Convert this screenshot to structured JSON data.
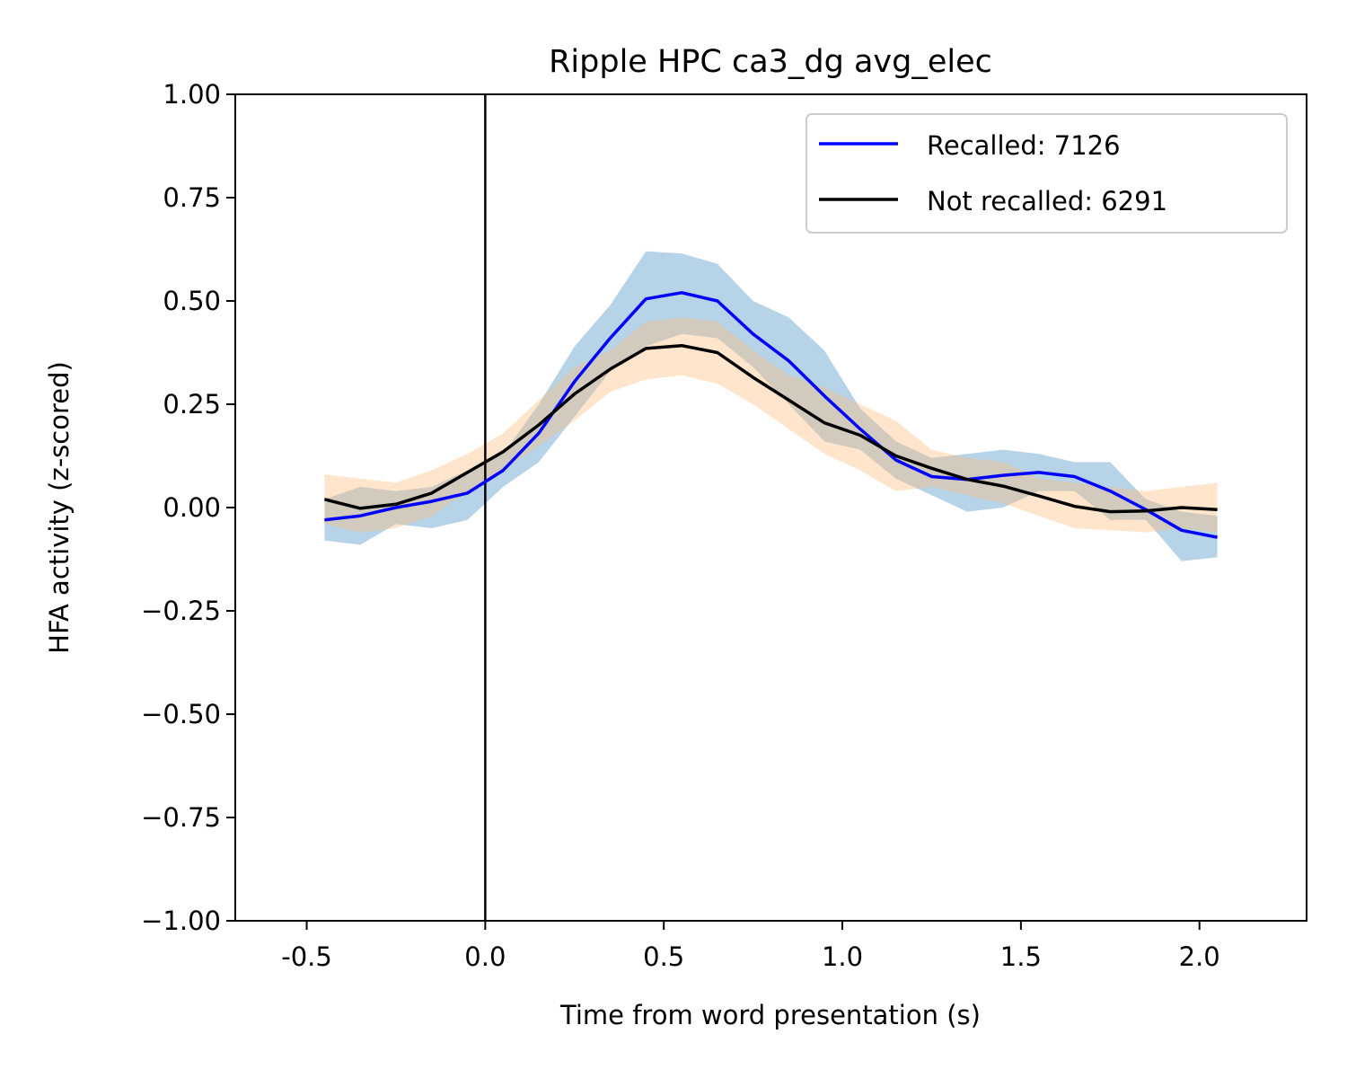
{
  "chart_data": {
    "type": "line",
    "title": "Ripple HPC ca3_dg avg_elec",
    "xlabel": "Time from word presentation (s)",
    "ylabel": "HFA activity (z-scored)",
    "xlim": [
      -0.7,
      2.3
    ],
    "ylim": [
      -1.0,
      1.0
    ],
    "xticks": [
      -0.5,
      0.0,
      0.5,
      1.0,
      1.5,
      2.0
    ],
    "xtick_labels": [
      "-0.5",
      "0.0",
      "0.5",
      "1.0",
      "1.5",
      "2.0"
    ],
    "yticks": [
      -1.0,
      -0.75,
      -0.5,
      -0.25,
      0.0,
      0.25,
      0.5,
      0.75,
      1.0
    ],
    "ytick_labels": [
      "−1.00",
      "−0.75",
      "−0.50",
      "−0.25",
      "0.00",
      "0.25",
      "0.50",
      "0.75",
      "1.00"
    ],
    "vline_x": 0.0,
    "grid": false,
    "legend_position": "top-right",
    "x": [
      -0.45,
      -0.35,
      -0.25,
      -0.15,
      -0.05,
      0.05,
      0.15,
      0.25,
      0.35,
      0.45,
      0.55,
      0.65,
      0.75,
      0.85,
      0.95,
      1.05,
      1.15,
      1.25,
      1.35,
      1.45,
      1.55,
      1.65,
      1.75,
      1.85,
      1.95,
      2.05
    ],
    "series": [
      {
        "name": "Recalled: 7126",
        "color": "#0000ff",
        "band_color": "#1f77b4",
        "values": [
          -0.03,
          -0.02,
          0.0,
          0.015,
          0.035,
          0.09,
          0.18,
          0.305,
          0.41,
          0.505,
          0.52,
          0.5,
          0.42,
          0.355,
          0.27,
          0.19,
          0.115,
          0.075,
          0.068,
          0.078,
          0.085,
          0.075,
          0.04,
          -0.005,
          -0.055,
          -0.072
        ],
        "upper": [
          0.02,
          0.05,
          0.04,
          0.05,
          0.09,
          0.13,
          0.25,
          0.39,
          0.49,
          0.62,
          0.615,
          0.59,
          0.5,
          0.46,
          0.38,
          0.24,
          0.16,
          0.12,
          0.13,
          0.14,
          0.13,
          0.11,
          0.11,
          0.02,
          -0.01,
          -0.02
        ],
        "lower": [
          -0.08,
          -0.09,
          -0.04,
          -0.05,
          -0.03,
          0.05,
          0.11,
          0.22,
          0.33,
          0.39,
          0.42,
          0.41,
          0.34,
          0.25,
          0.16,
          0.14,
          0.07,
          0.03,
          -0.01,
          0.0,
          0.04,
          0.04,
          -0.03,
          -0.03,
          -0.13,
          -0.12
        ]
      },
      {
        "name": "Not recalled: 6291",
        "color": "#000000",
        "band_color": "#ffbb78",
        "values": [
          0.02,
          -0.002,
          0.008,
          0.035,
          0.085,
          0.135,
          0.2,
          0.275,
          0.335,
          0.385,
          0.392,
          0.375,
          0.315,
          0.26,
          0.205,
          0.175,
          0.125,
          0.095,
          0.068,
          0.052,
          0.028,
          0.003,
          -0.01,
          -0.008,
          0.0,
          -0.005
        ],
        "upper": [
          0.08,
          0.07,
          0.06,
          0.09,
          0.13,
          0.18,
          0.26,
          0.34,
          0.38,
          0.45,
          0.46,
          0.45,
          0.38,
          0.32,
          0.29,
          0.25,
          0.21,
          0.14,
          0.12,
          0.11,
          0.07,
          0.06,
          0.05,
          0.04,
          0.05,
          0.06
        ],
        "lower": [
          -0.04,
          -0.06,
          -0.05,
          -0.02,
          0.04,
          0.09,
          0.15,
          0.21,
          0.28,
          0.31,
          0.32,
          0.3,
          0.25,
          0.19,
          0.13,
          0.09,
          0.04,
          0.05,
          0.03,
          0.01,
          -0.02,
          -0.05,
          -0.055,
          -0.06,
          -0.05,
          -0.06
        ]
      }
    ]
  }
}
